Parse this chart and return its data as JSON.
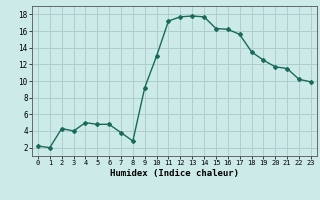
{
  "x": [
    0,
    1,
    2,
    3,
    4,
    5,
    6,
    7,
    8,
    9,
    10,
    11,
    12,
    13,
    14,
    15,
    16,
    17,
    18,
    19,
    20,
    21,
    22,
    23
  ],
  "y": [
    2.2,
    2.0,
    4.3,
    4.0,
    5.0,
    4.8,
    4.8,
    3.8,
    2.8,
    9.2,
    13.0,
    17.2,
    17.7,
    17.8,
    17.7,
    16.3,
    16.2,
    15.6,
    13.5,
    12.5,
    11.7,
    11.5,
    10.2,
    9.9
  ],
  "line_color": "#1a6b5a",
  "marker": "D",
  "marker_size": 2.0,
  "bg_color": "#cceae7",
  "grid_color": "#b0cece",
  "xlabel": "Humidex (Indice chaleur)",
  "xlim": [
    -0.5,
    23.5
  ],
  "ylim": [
    1,
    19
  ],
  "yticks": [
    2,
    4,
    6,
    8,
    10,
    12,
    14,
    16,
    18
  ],
  "xticks": [
    0,
    1,
    2,
    3,
    4,
    5,
    6,
    7,
    8,
    9,
    10,
    11,
    12,
    13,
    14,
    15,
    16,
    17,
    18,
    19,
    20,
    21,
    22,
    23
  ]
}
